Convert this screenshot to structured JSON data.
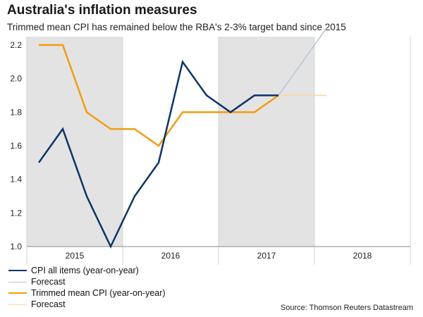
{
  "chart_data": {
    "type": "line",
    "title": "Australia's inflation measures",
    "subtitle": "Trimmed mean CPI has remained below the RBA's 2-3% target band since 2015",
    "source": "Source: Thomson Reuters Datastream",
    "x": [
      "2015-Q1",
      "2015-Q2",
      "2015-Q3",
      "2015-Q4",
      "2016-Q1",
      "2016-Q2",
      "2016-Q3",
      "2016-Q4",
      "2017-Q1",
      "2017-Q2",
      "2017-Q3",
      "2017-Q4",
      "2018-Q1"
    ],
    "x_tick_labels": [
      "2015",
      "2016",
      "2017",
      "2018"
    ],
    "ylim": [
      1.0,
      2.25
    ],
    "y_ticks": [
      1.0,
      1.2,
      1.4,
      1.6,
      1.8,
      2.0,
      2.2
    ],
    "shaded_years": [
      "2015",
      "2017"
    ],
    "series": [
      {
        "name": "CPI all items (year-on-year)",
        "color": "#0d3466",
        "values": [
          1.5,
          1.7,
          1.3,
          1.0,
          1.3,
          1.5,
          2.1,
          1.9,
          1.8,
          1.9,
          1.9,
          null,
          null
        ]
      },
      {
        "name": "Forecast",
        "color": "#b8c7db",
        "values": [
          null,
          null,
          null,
          null,
          null,
          null,
          null,
          null,
          null,
          null,
          1.9,
          2.1,
          2.3
        ]
      },
      {
        "name": "Trimmed mean CPI (year-on-year)",
        "color": "#f39c12",
        "values": [
          2.2,
          2.2,
          1.8,
          1.7,
          1.7,
          1.6,
          1.8,
          1.8,
          1.8,
          1.8,
          1.9,
          null,
          null
        ]
      },
      {
        "name": "Forecast",
        "color": "#f7d9a8",
        "values": [
          null,
          null,
          null,
          null,
          null,
          null,
          null,
          null,
          null,
          null,
          1.9,
          1.9,
          1.9
        ]
      }
    ],
    "grid": "vertical",
    "legend_position": "bottom-left"
  }
}
